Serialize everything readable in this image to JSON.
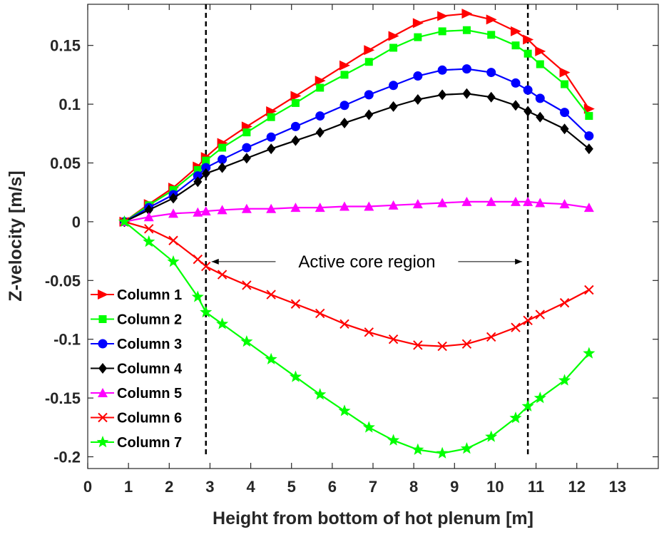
{
  "chart_data": {
    "type": "line",
    "title": "",
    "xlabel": "Height from bottom of hot plenum [m]",
    "ylabel": "Z-velocity [m/s]",
    "xlim": [
      0,
      14
    ],
    "ylim": [
      -0.21,
      0.185
    ],
    "x_ticks": [
      0,
      1,
      2,
      3,
      4,
      5,
      6,
      7,
      8,
      9,
      10,
      11,
      12,
      13
    ],
    "y_ticks": [
      0.15,
      0.1,
      0.05,
      0,
      -0.05,
      -0.1,
      -0.15,
      -0.2
    ],
    "y_tick_labels": [
      "0.15",
      "0.1",
      "0.05",
      "0",
      "-0.05",
      "-0.1",
      "-0.15",
      "-0.2"
    ],
    "grid": false,
    "legend_position": "bottom-left",
    "x": [
      0.9,
      1.5,
      2.1,
      2.7,
      2.9,
      3.3,
      3.9,
      4.5,
      5.1,
      5.7,
      6.3,
      6.9,
      7.5,
      8.1,
      8.7,
      9.3,
      9.9,
      10.5,
      10.8,
      11.1,
      11.7,
      12.3
    ],
    "series": [
      {
        "name": "Column 1",
        "color": "#ff0000",
        "marker": "triangle-right",
        "values": [
          0.0,
          0.015,
          0.029,
          0.047,
          0.055,
          0.067,
          0.081,
          0.094,
          0.107,
          0.12,
          0.133,
          0.146,
          0.158,
          0.169,
          0.175,
          0.177,
          0.172,
          0.162,
          0.155,
          0.145,
          0.127,
          0.096
        ]
      },
      {
        "name": "Column 2",
        "color": "#00ff00",
        "marker": "square",
        "values": [
          0.0,
          0.014,
          0.027,
          0.044,
          0.052,
          0.063,
          0.076,
          0.089,
          0.101,
          0.114,
          0.125,
          0.136,
          0.148,
          0.157,
          0.162,
          0.163,
          0.159,
          0.15,
          0.143,
          0.134,
          0.117,
          0.09
        ]
      },
      {
        "name": "Column 3",
        "color": "#0000ff",
        "marker": "circle",
        "values": [
          0.0,
          0.012,
          0.023,
          0.039,
          0.046,
          0.053,
          0.063,
          0.072,
          0.081,
          0.09,
          0.099,
          0.108,
          0.116,
          0.124,
          0.129,
          0.13,
          0.127,
          0.118,
          0.112,
          0.105,
          0.093,
          0.073
        ]
      },
      {
        "name": "Column 4",
        "color": "#000000",
        "marker": "diamond",
        "values": [
          0.0,
          0.01,
          0.02,
          0.034,
          0.041,
          0.046,
          0.054,
          0.062,
          0.069,
          0.076,
          0.084,
          0.091,
          0.098,
          0.104,
          0.108,
          0.109,
          0.106,
          0.099,
          0.094,
          0.089,
          0.079,
          0.062
        ]
      },
      {
        "name": "Column 5",
        "color": "#ff00ff",
        "marker": "triangle-up",
        "values": [
          0.0,
          0.004,
          0.007,
          0.008,
          0.009,
          0.01,
          0.011,
          0.011,
          0.012,
          0.012,
          0.013,
          0.013,
          0.014,
          0.015,
          0.016,
          0.017,
          0.017,
          0.017,
          0.017,
          0.016,
          0.015,
          0.012
        ]
      },
      {
        "name": "Column 6",
        "color": "#ff0000",
        "marker": "x",
        "values": [
          0.0,
          -0.006,
          -0.016,
          -0.032,
          -0.038,
          -0.045,
          -0.054,
          -0.062,
          -0.07,
          -0.078,
          -0.087,
          -0.094,
          -0.1,
          -0.105,
          -0.106,
          -0.104,
          -0.098,
          -0.09,
          -0.084,
          -0.079,
          -0.069,
          -0.058
        ]
      },
      {
        "name": "Column 7",
        "color": "#00ff00",
        "marker": "star",
        "values": [
          0.0,
          -0.017,
          -0.034,
          -0.064,
          -0.077,
          -0.087,
          -0.102,
          -0.117,
          -0.132,
          -0.147,
          -0.161,
          -0.175,
          -0.186,
          -0.194,
          -0.197,
          -0.193,
          -0.183,
          -0.167,
          -0.157,
          -0.15,
          -0.135,
          -0.112
        ]
      }
    ],
    "annotations": {
      "vlines_x": [
        2.9,
        10.8
      ],
      "text": "Active core region",
      "arrow_from_x": 2.9,
      "arrow_to_x": 10.8,
      "arrow_y": -0.034
    }
  }
}
